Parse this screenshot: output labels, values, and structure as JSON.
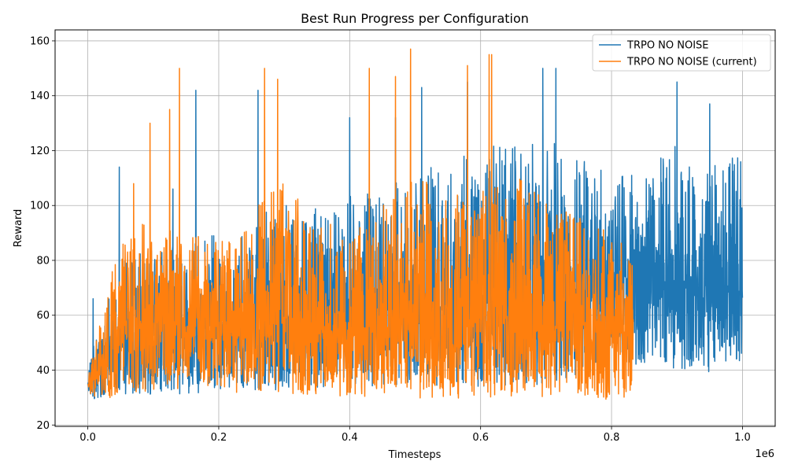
{
  "chart_data": {
    "type": "line",
    "title": "Best Run Progress per Configuration",
    "xlabel": "Timesteps",
    "ylabel": "Reward",
    "x_offset_label": "1e6",
    "xlim": [
      -0.05,
      1.05
    ],
    "ylim": [
      19.5,
      164
    ],
    "x_unit_multiplier": 1000000,
    "xticks": [
      0.0,
      0.2,
      0.4,
      0.6,
      0.8,
      1.0
    ],
    "xtick_labels": [
      "0.0",
      "0.2",
      "0.4",
      "0.6",
      "0.8",
      "1.0"
    ],
    "yticks": [
      20,
      40,
      60,
      80,
      100,
      120,
      140,
      160
    ],
    "ytick_labels": [
      "20",
      "40",
      "60",
      "80",
      "100",
      "120",
      "140",
      "160"
    ],
    "grid": true,
    "legend_position": "top-right",
    "series": [
      {
        "name": "TRPO NO NOISE",
        "color": "#1f77b4",
        "x_end": 1.0,
        "envelope": {
          "x": [
            0.0,
            0.02,
            0.05,
            0.1,
            0.15,
            0.2,
            0.25,
            0.3,
            0.35,
            0.4,
            0.45,
            0.5,
            0.55,
            0.6,
            0.65,
            0.7,
            0.75,
            0.8,
            0.85,
            0.9,
            0.95,
            1.0
          ],
          "low": [
            29,
            30,
            31,
            31,
            31,
            32,
            32,
            33,
            33,
            34,
            34,
            34,
            34,
            34,
            34,
            35,
            38,
            40,
            42,
            40,
            39,
            40
          ],
          "mid": [
            34,
            42,
            52,
            55,
            55,
            57,
            58,
            58,
            58,
            60,
            60,
            62,
            62,
            64,
            66,
            68,
            70,
            72,
            72,
            72,
            70,
            70
          ],
          "high": [
            40,
            60,
            80,
            84,
            86,
            90,
            96,
            100,
            100,
            104,
            108,
            112,
            116,
            120,
            124,
            126,
            118,
            112,
            115,
            122,
            118,
            118
          ]
        },
        "peaks": [
          {
            "x": 0.008,
            "y": 66
          },
          {
            "x": 0.048,
            "y": 114
          },
          {
            "x": 0.13,
            "y": 106
          },
          {
            "x": 0.165,
            "y": 142
          },
          {
            "x": 0.26,
            "y": 142
          },
          {
            "x": 0.4,
            "y": 132
          },
          {
            "x": 0.47,
            "y": 132
          },
          {
            "x": 0.51,
            "y": 143
          },
          {
            "x": 0.58,
            "y": 145
          },
          {
            "x": 0.695,
            "y": 150
          },
          {
            "x": 0.715,
            "y": 150
          },
          {
            "x": 0.9,
            "y": 145
          },
          {
            "x": 0.95,
            "y": 137
          }
        ]
      },
      {
        "name": "TRPO NO NOISE (current)",
        "color": "#ff7f0e",
        "x_end": 0.833,
        "envelope": {
          "x": [
            0.0,
            0.02,
            0.05,
            0.1,
            0.15,
            0.2,
            0.25,
            0.3,
            0.35,
            0.4,
            0.45,
            0.5,
            0.55,
            0.6,
            0.65,
            0.7,
            0.75,
            0.8,
            0.833
          ],
          "low": [
            28,
            29,
            31,
            32,
            33,
            32,
            31,
            30,
            30,
            30,
            30,
            30,
            29,
            30,
            30,
            30,
            30,
            29,
            30
          ],
          "mid": [
            33,
            42,
            56,
            58,
            56,
            56,
            58,
            62,
            56,
            52,
            56,
            60,
            56,
            58,
            60,
            56,
            54,
            54,
            54
          ],
          "high": [
            38,
            58,
            90,
            96,
            88,
            90,
            98,
            112,
            94,
            92,
            100,
            112,
            104,
            106,
            112,
            104,
            96,
            90,
            82
          ]
        },
        "peaks": [
          {
            "x": 0.07,
            "y": 108
          },
          {
            "x": 0.095,
            "y": 130
          },
          {
            "x": 0.125,
            "y": 135
          },
          {
            "x": 0.14,
            "y": 150
          },
          {
            "x": 0.27,
            "y": 150
          },
          {
            "x": 0.29,
            "y": 146
          },
          {
            "x": 0.43,
            "y": 150
          },
          {
            "x": 0.47,
            "y": 147
          },
          {
            "x": 0.493,
            "y": 157
          },
          {
            "x": 0.58,
            "y": 151
          },
          {
            "x": 0.613,
            "y": 155
          },
          {
            "x": 0.617,
            "y": 155
          }
        ]
      }
    ]
  }
}
